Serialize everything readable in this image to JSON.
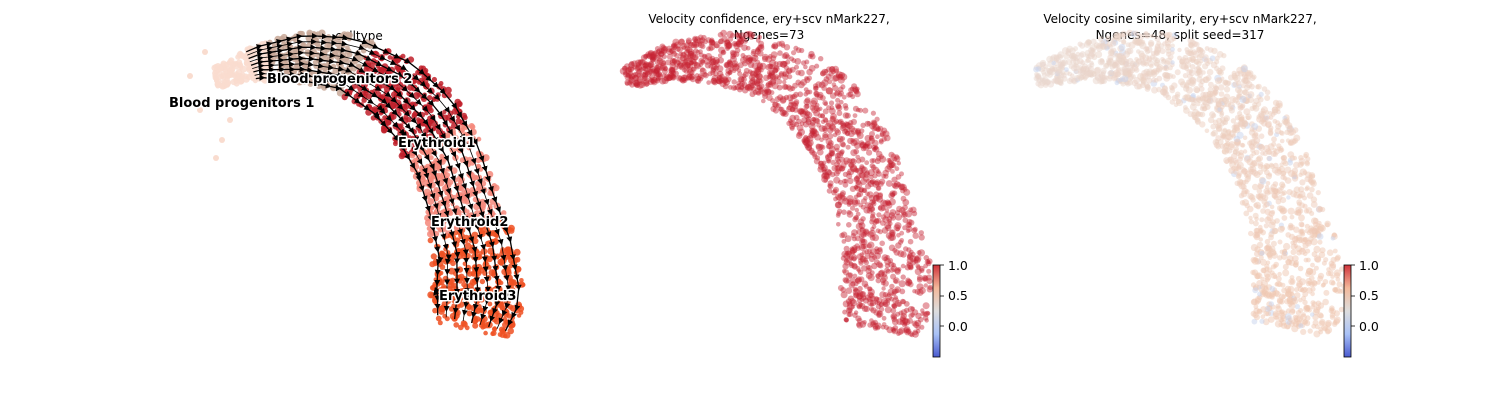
{
  "chart_data": [
    {
      "type": "scatter",
      "subtype": "umap-embedding-with-velocity-streamlines",
      "title": "celltype",
      "colored_by": "celltype",
      "axes_visible": false,
      "grid": false,
      "legend": "on-data",
      "clusters": [
        {
          "name": "Blood progenitors 1",
          "color": "#f9dccf"
        },
        {
          "name": "Blood progenitors 2",
          "color": "#c8a898"
        },
        {
          "name": "Erythroid1",
          "color": "#c0202a"
        },
        {
          "name": "Erythroid2",
          "color": "#f4877a"
        },
        {
          "name": "Erythroid3",
          "color": "#ee5022"
        }
      ],
      "streamline_color": "#000000"
    },
    {
      "type": "scatter",
      "subtype": "umap-embedding-continuous",
      "title_lines": [
        "Velocity confidence, ery+scv nMark227,",
        "Ngenes=73"
      ],
      "colormap": "coolwarm",
      "axes_visible": false,
      "grid": false,
      "colorbar": {
        "range": [
          -0.5,
          1.0
        ],
        "ticks": [
          "1.0",
          "0.5",
          "0.0"
        ],
        "placement": "right"
      },
      "point_value_estimate": 0.97,
      "point_color": "#c21a2c"
    },
    {
      "type": "scatter",
      "subtype": "umap-embedding-continuous",
      "title_lines": [
        "Velocity cosine similarity, ery+scv nMark227,",
        "Ngenes=48, split seed=317"
      ],
      "colormap": "coolwarm",
      "axes_visible": false,
      "grid": false,
      "colorbar": {
        "range": [
          -0.5,
          1.0
        ],
        "ticks": [
          "1.0",
          "0.5",
          "0.0"
        ],
        "placement": "right"
      },
      "point_value_estimate": 0.4,
      "point_color": "#efc7b2",
      "low_value_color": "#c8d4ee"
    }
  ]
}
